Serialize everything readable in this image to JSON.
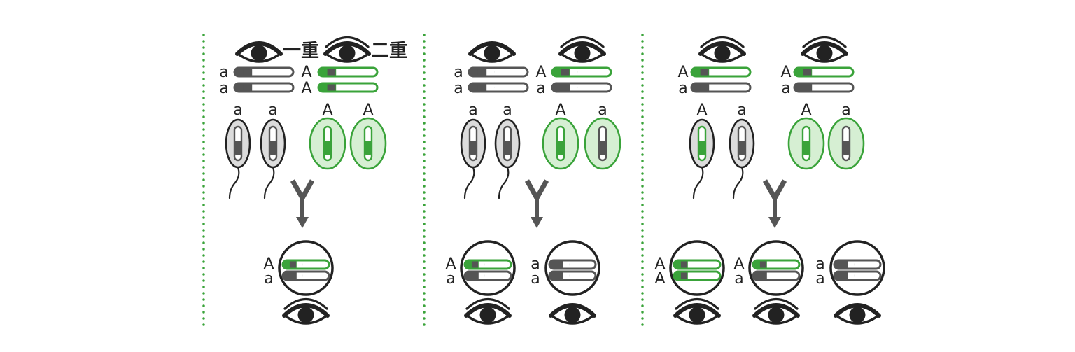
{
  "colors": {
    "dominant": "#3aa33a",
    "dominant_fill": "#d6efd3",
    "recessive": "#555555",
    "recessive_fill": "#dcdcdc",
    "divider": "#3aa33a",
    "ink": "#222222"
  },
  "trait_labels": {
    "single": "一重",
    "double": "二重"
  },
  "panels": [
    {
      "parents": [
        {
          "eyelid": "single",
          "label": "一重",
          "genotype": [
            "a",
            "a"
          ]
        },
        {
          "eyelid": "double",
          "label": "二重",
          "genotype": [
            "A",
            "A"
          ]
        }
      ],
      "gametes": [
        "a",
        "a",
        "A",
        "A"
      ],
      "offspring": [
        {
          "genotype": [
            "A",
            "a"
          ],
          "eyelid": "double"
        }
      ]
    },
    {
      "parents": [
        {
          "eyelid": "single",
          "label": "",
          "genotype": [
            "a",
            "a"
          ]
        },
        {
          "eyelid": "double",
          "label": "",
          "genotype": [
            "A",
            "a"
          ]
        }
      ],
      "gametes": [
        "a",
        "a",
        "A",
        "a"
      ],
      "offspring": [
        {
          "genotype": [
            "A",
            "a"
          ],
          "eyelid": "double"
        },
        {
          "genotype": [
            "a",
            "a"
          ],
          "eyelid": "single"
        }
      ]
    },
    {
      "parents": [
        {
          "eyelid": "double",
          "label": "",
          "genotype": [
            "A",
            "a"
          ]
        },
        {
          "eyelid": "double",
          "label": "",
          "genotype": [
            "A",
            "a"
          ]
        }
      ],
      "gametes": [
        "A",
        "a",
        "A",
        "a"
      ],
      "offspring": [
        {
          "genotype": [
            "A",
            "A"
          ],
          "eyelid": "double"
        },
        {
          "genotype": [
            "A",
            "a"
          ],
          "eyelid": "double"
        },
        {
          "genotype": [
            "a",
            "a"
          ],
          "eyelid": "single"
        }
      ]
    }
  ]
}
